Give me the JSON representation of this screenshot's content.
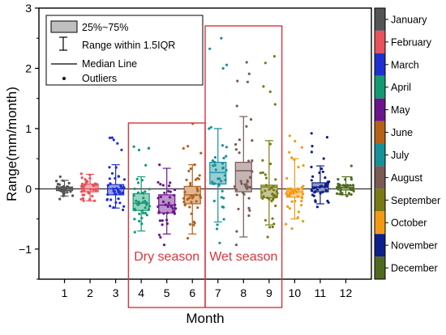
{
  "chart_data": {
    "type": "box",
    "xlabel": "Month",
    "ylabel": "Range(mm/month)",
    "categories": [
      "1",
      "2",
      "3",
      "4",
      "5",
      "6",
      "7",
      "8",
      "9",
      "10",
      "11",
      "12"
    ],
    "ylim": [
      -1.5,
      3
    ],
    "yticks": [
      -1,
      0,
      1,
      2,
      3
    ],
    "ytick_labels": [
      "−1",
      "0",
      "1",
      "2",
      "3"
    ],
    "zero_line": true,
    "legend": {
      "placement": "top-left",
      "entries": [
        "25%~75%",
        "Range within 1.5IQR",
        "Median Line",
        "Outliers"
      ]
    },
    "color_bar": {
      "placement": "right",
      "labels": [
        "January",
        "February",
        "March",
        "April",
        "May",
        "June",
        "July",
        "August",
        "September",
        "October",
        "November",
        "December"
      ],
      "colors": [
        "#555555",
        "#e8525a",
        "#1f2fd0",
        "#149a72",
        "#6b148c",
        "#b4621a",
        "#16919a",
        "#7a5a55",
        "#7a7a14",
        "#f29a14",
        "#0f1f8a",
        "#4f6a1f"
      ]
    },
    "annotations": [
      {
        "text": "Dry season",
        "months": [
          4,
          6
        ],
        "color": "#d9343c"
      },
      {
        "text": "Wet season",
        "months": [
          7,
          9
        ],
        "color": "#d9343c"
      }
    ],
    "series": [
      {
        "month": 1,
        "q1": -0.03,
        "median": 0.0,
        "q3": 0.03,
        "whisker_low": -0.12,
        "whisker_high": 0.14,
        "outlier_min": -0.17,
        "outlier_max": 0.2
      },
      {
        "month": 2,
        "q1": -0.05,
        "median": 0.0,
        "q3": 0.08,
        "whisker_low": -0.2,
        "whisker_high": 0.24,
        "outlier_min": -0.2,
        "outlier_max": 0.25
      },
      {
        "month": 3,
        "q1": -0.1,
        "median": 0.0,
        "q3": 0.07,
        "whisker_low": -0.32,
        "whisker_high": 0.4,
        "outlier_min": -0.35,
        "outlier_max": 0.85
      },
      {
        "month": 4,
        "q1": -0.36,
        "median": -0.24,
        "q3": -0.08,
        "whisker_low": -0.7,
        "whisker_high": 0.2,
        "outlier_min": -0.72,
        "outlier_max": 0.7
      },
      {
        "month": 5,
        "q1": -0.4,
        "median": -0.27,
        "q3": -0.1,
        "whisker_low": -0.75,
        "whisker_high": 0.34,
        "outlier_min": -0.93,
        "outlier_max": 0.4
      },
      {
        "month": 6,
        "q1": -0.25,
        "median": -0.1,
        "q3": 0.04,
        "whisker_low": -0.75,
        "whisker_high": 0.4,
        "outlier_min": -0.82,
        "outlier_max": 1.08
      },
      {
        "month": 7,
        "q1": 0.08,
        "median": 0.27,
        "q3": 0.44,
        "whisker_low": -0.55,
        "whisker_high": 1.0,
        "outlier_min": -0.9,
        "outlier_max": 2.5
      },
      {
        "month": 8,
        "q1": -0.05,
        "median": 0.3,
        "q3": 0.44,
        "whisker_low": -0.8,
        "whisker_high": 1.2,
        "outlier_min": -0.93,
        "outlier_max": 2.1
      },
      {
        "month": 9,
        "q1": -0.15,
        "median": 0.03,
        "q3": 0.06,
        "whisker_low": -0.6,
        "whisker_high": 0.8,
        "outlier_min": -0.8,
        "outlier_max": 2.2
      },
      {
        "month": 10,
        "q1": -0.14,
        "median": -0.05,
        "q3": 0.0,
        "whisker_low": -0.5,
        "whisker_high": 0.5,
        "outlier_min": -0.66,
        "outlier_max": 0.88
      },
      {
        "month": 11,
        "q1": -0.05,
        "median": 0.03,
        "q3": 0.1,
        "whisker_low": -0.25,
        "whisker_high": 0.38,
        "outlier_min": -0.3,
        "outlier_max": 0.92
      },
      {
        "month": 12,
        "q1": -0.02,
        "median": 0.02,
        "q3": 0.06,
        "whisker_low": -0.1,
        "whisker_high": 0.2,
        "outlier_min": -0.12,
        "outlier_max": 0.38
      }
    ]
  }
}
